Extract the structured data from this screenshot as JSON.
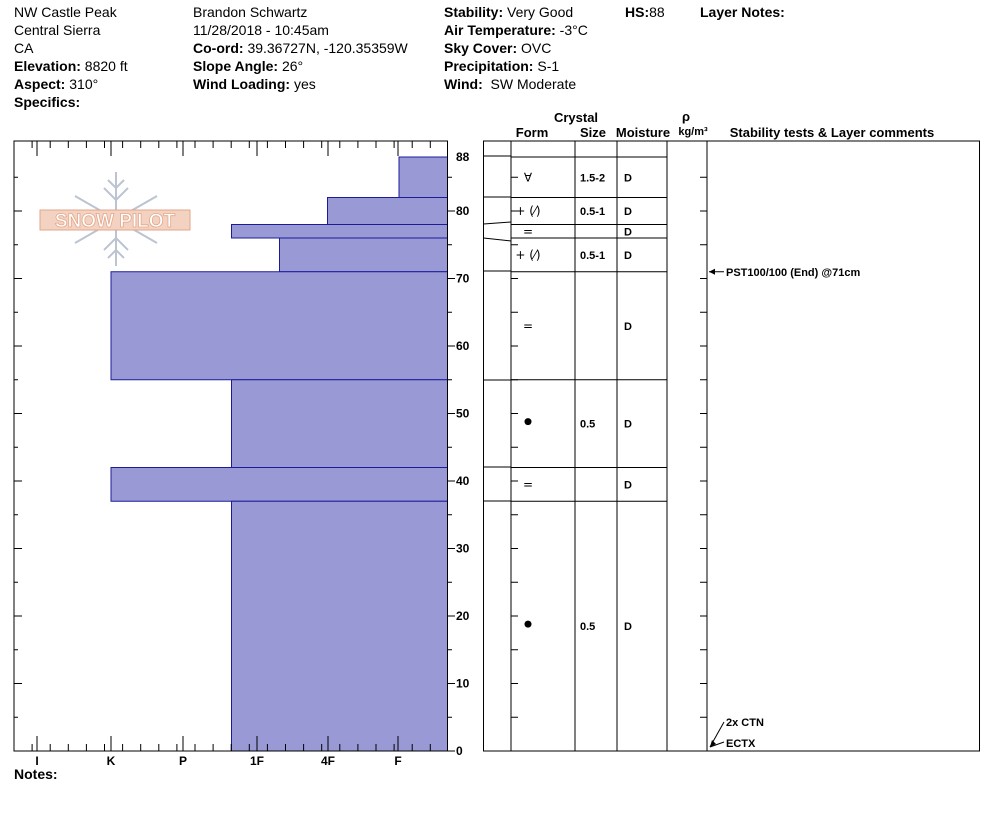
{
  "header": {
    "location": "NW Castle Peak",
    "range": "Central Sierra",
    "state": "CA",
    "elevation_label": "Elevation:",
    "elevation_value": "8820 ft",
    "aspect_label": "Aspect:",
    "aspect_value": "310°",
    "specifics_label": "Specifics:",
    "observer": "Brandon Schwartz",
    "datetime": "11/28/2018 - 10:45am",
    "coord_label": "Co-ord:",
    "coord_value": "39.36727N, -120.35359W",
    "slope_label": "Slope Angle:",
    "slope_value": "26°",
    "windload_label": "Wind Loading:",
    "windload_value": "yes",
    "stability_label": "Stability:",
    "stability_value": "Very Good",
    "airtemp_label": "Air Temperature:",
    "airtemp_value": "-3°C",
    "sky_label": "Sky Cover:",
    "sky_value": "OVC",
    "precip_label": "Precipitation:",
    "precip_value": "S-1",
    "wind_label": "Wind:",
    "wind_value": "SW Moderate",
    "hs_label": "HS:",
    "hs_value": "88",
    "layer_notes_label": "Layer Notes:"
  },
  "logo_text": "SNOW PILOT",
  "notes_label": "Notes:",
  "columns": {
    "crystal": "Crystal",
    "form": "Form",
    "size": "Size",
    "moisture": "Moisture",
    "rho": "ρ",
    "density_unit": "kg/m³",
    "comments": "Stability tests & Layer comments"
  },
  "colors": {
    "hardness_fill": "#9999d6",
    "hardness_edge": "#1c1c99"
  },
  "chart_data": {
    "type": "bar",
    "orientation": "horizontal",
    "y_axis": {
      "min": 0,
      "max": 88,
      "ticks": [
        0,
        10,
        20,
        30,
        40,
        50,
        60,
        70,
        80,
        88
      ]
    },
    "hardness_scale": [
      "I",
      "K",
      "P",
      "1F",
      "4F",
      "F"
    ],
    "hardness_profile": [
      {
        "top": 88,
        "bottom": 82,
        "hardness": "F"
      },
      {
        "top": 82,
        "bottom": 78,
        "hardness": "4F-"
      },
      {
        "top": 78,
        "bottom": 76,
        "hardness": "1F+"
      },
      {
        "top": 76,
        "bottom": 71,
        "hardness": "1F-"
      },
      {
        "top": 71,
        "bottom": 55,
        "hardness": "K+"
      },
      {
        "top": 55,
        "bottom": 42,
        "hardness": "1F+"
      },
      {
        "top": 42,
        "bottom": 37,
        "hardness": "K+"
      },
      {
        "top": 37,
        "bottom": 0,
        "hardness": "1F+"
      }
    ],
    "layers": [
      {
        "top": 88,
        "bottom": 82,
        "form": "∀",
        "size": "1.5-2",
        "moisture": "D"
      },
      {
        "top": 82,
        "bottom": 78,
        "form": "+ (⁄)",
        "size": "0.5-1",
        "moisture": "D"
      },
      {
        "top": 78,
        "bottom": 76,
        "form": "=",
        "size": "",
        "moisture": "D"
      },
      {
        "top": 76,
        "bottom": 71,
        "form": "+ (⁄)",
        "size": "0.5-1",
        "moisture": "D"
      },
      {
        "top": 71,
        "bottom": 55,
        "form": "=",
        "size": "",
        "moisture": "D"
      },
      {
        "top": 55,
        "bottom": 42,
        "form": "●",
        "size": "0.5",
        "moisture": "D"
      },
      {
        "top": 42,
        "bottom": 37,
        "form": "=",
        "size": "",
        "moisture": "D"
      },
      {
        "top": 37,
        "bottom": 0,
        "form": "●",
        "size": "0.5",
        "moisture": "D"
      }
    ],
    "stability_tests": [
      {
        "depth": 71,
        "text": "PST100/100 (End) @71cm"
      },
      {
        "depth": 0,
        "text": "2x CTN"
      },
      {
        "depth": 0,
        "text": "ECTX"
      }
    ]
  }
}
